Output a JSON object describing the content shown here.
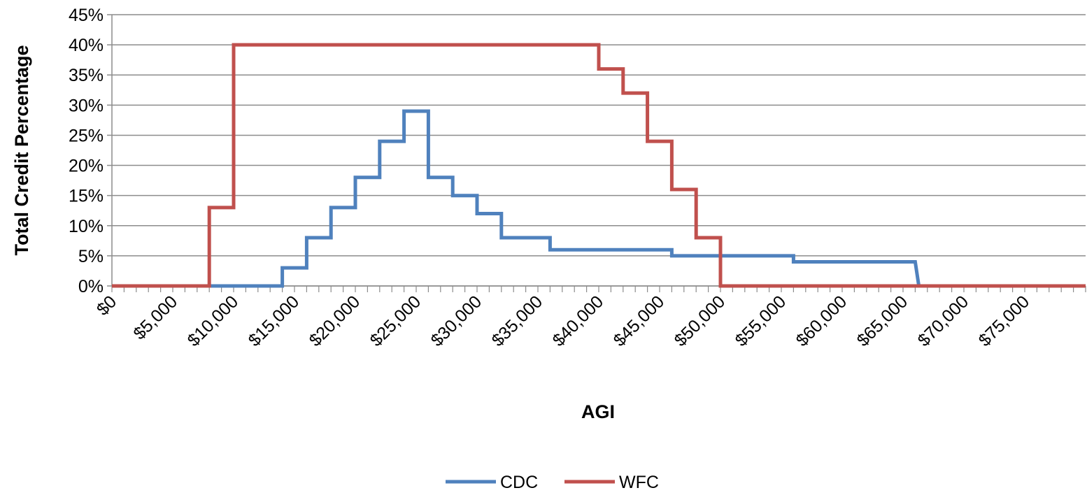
{
  "chart_data": {
    "type": "line",
    "step": true,
    "xlabel": "AGI",
    "ylabel": "Total Credit Percentage",
    "xlim": [
      0,
      80000
    ],
    "ylim": [
      0,
      45
    ],
    "x_ticks": [
      0,
      5000,
      10000,
      15000,
      20000,
      25000,
      30000,
      35000,
      40000,
      45000,
      50000,
      55000,
      60000,
      65000,
      70000,
      75000
    ],
    "x_tick_labels": [
      "$0",
      "$5,000",
      "$10,000",
      "$15,000",
      "$20,000",
      "$25,000",
      "$30,000",
      "$35,000",
      "$40,000",
      "$45,000",
      "$50,000",
      "$55,000",
      "$60,000",
      "$65,000",
      "$70,000",
      "$75,000"
    ],
    "x_minor_step": 1000,
    "y_ticks": [
      0,
      5,
      10,
      15,
      20,
      25,
      30,
      35,
      40,
      45
    ],
    "y_tick_labels": [
      "0%",
      "5%",
      "10%",
      "15%",
      "20%",
      "25%",
      "30%",
      "35%",
      "40%",
      "45%"
    ],
    "grid": "horizontal",
    "legend": "bottom",
    "series": [
      {
        "name": "CDC",
        "color": "#4F81BD",
        "points": [
          [
            8000,
            0
          ],
          [
            14000,
            0
          ],
          [
            14000,
            3
          ],
          [
            16000,
            3
          ],
          [
            16000,
            8
          ],
          [
            18000,
            8
          ],
          [
            18000,
            13
          ],
          [
            20000,
            13
          ],
          [
            20000,
            18
          ],
          [
            22000,
            18
          ],
          [
            22000,
            24
          ],
          [
            24000,
            24
          ],
          [
            24000,
            29
          ],
          [
            26000,
            29
          ],
          [
            26000,
            18
          ],
          [
            28000,
            18
          ],
          [
            28000,
            15
          ],
          [
            30000,
            15
          ],
          [
            30000,
            12
          ],
          [
            32000,
            12
          ],
          [
            32000,
            8
          ],
          [
            36000,
            8
          ],
          [
            36000,
            6
          ],
          [
            46000,
            6
          ],
          [
            46000,
            5
          ],
          [
            56000,
            5
          ],
          [
            56000,
            4
          ],
          [
            66000,
            4
          ],
          [
            66300,
            0
          ]
        ]
      },
      {
        "name": "WFC",
        "color": "#C0504D",
        "points": [
          [
            0,
            0
          ],
          [
            8000,
            0
          ],
          [
            8000,
            13
          ],
          [
            10000,
            13
          ],
          [
            10000,
            40
          ],
          [
            40000,
            40
          ],
          [
            40000,
            36
          ],
          [
            42000,
            36
          ],
          [
            42000,
            32
          ],
          [
            44000,
            32
          ],
          [
            44000,
            24
          ],
          [
            46000,
            24
          ],
          [
            46000,
            16
          ],
          [
            48000,
            16
          ],
          [
            48000,
            8
          ],
          [
            50000,
            8
          ],
          [
            50000,
            0
          ],
          [
            80000,
            0
          ]
        ]
      }
    ]
  }
}
